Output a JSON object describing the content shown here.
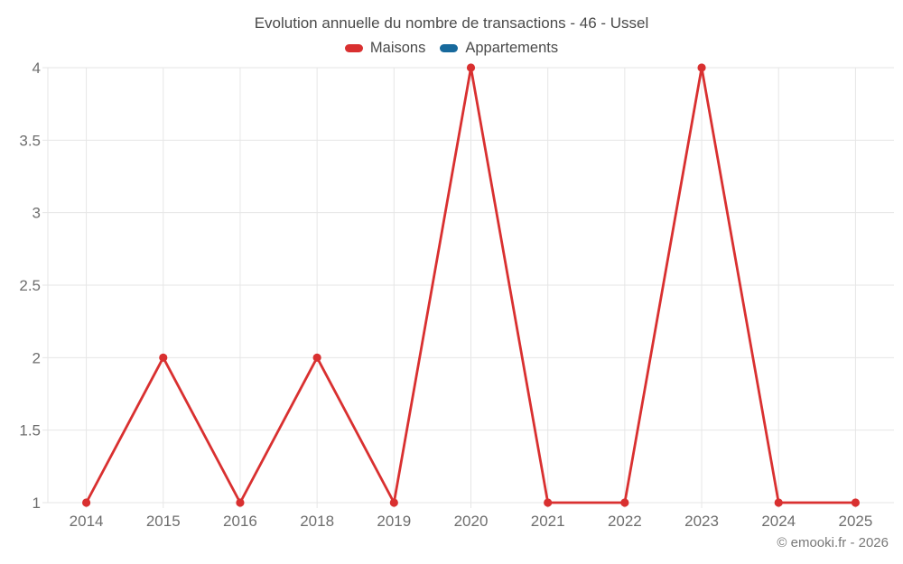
{
  "title": "Evolution annuelle du nombre de transactions - 46 - Ussel",
  "footer": {
    "copyright": "© emooki.fr - 2026"
  },
  "colors": {
    "maisons": "#d93030",
    "appartements": "#17699c",
    "grid": "#e6e6e6",
    "axis_text": "#6e6e6e",
    "title_text": "#4a4a4a",
    "copyright_text": "#787878",
    "background": "#ffffff"
  },
  "chart_data": {
    "type": "line",
    "title": "Evolution annuelle du nombre de transactions - 46 - Ussel",
    "categories": [
      "2014",
      "2015",
      "2016",
      "2018",
      "2019",
      "2020",
      "2021",
      "2022",
      "2023",
      "2024",
      "2025"
    ],
    "series": [
      {
        "name": "Maisons",
        "color": "#d93030",
        "marker": "circle",
        "values": [
          1,
          2,
          1,
          2,
          1,
          4,
          1,
          1,
          4,
          1,
          1
        ]
      },
      {
        "name": "Appartements",
        "color": "#17699c",
        "marker": "circle",
        "values": []
      }
    ],
    "xlabel": "",
    "ylabel": "",
    "ylim": [
      1,
      4
    ],
    "yticks": [
      1,
      1.5,
      2,
      2.5,
      3,
      3.5,
      4
    ],
    "grid": true,
    "legend_position": "top",
    "annotation": "© emooki.fr - 2026"
  }
}
